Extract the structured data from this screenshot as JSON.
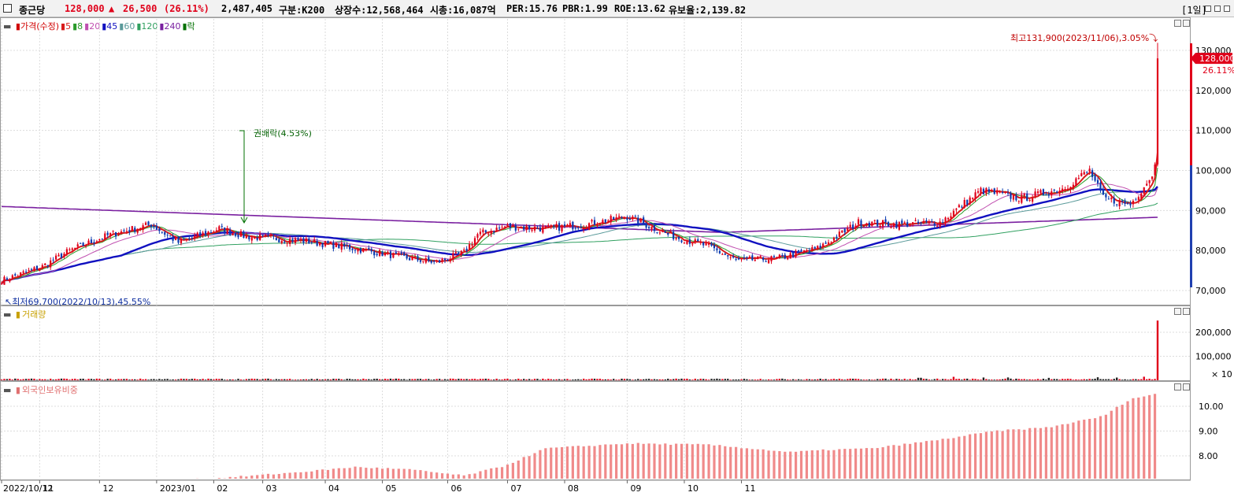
{
  "header": {
    "stock_name": "종근당",
    "price": "128,000",
    "change_arrow": "▲",
    "change": "26,500",
    "change_pct": "(26.11%)",
    "volume": "2,487,405",
    "category": "구분:K200",
    "listed_shares": "상장수:12,568,464",
    "market_cap": "시총:16,087억",
    "per": "PER:15.76",
    "pbr": "PBR:1.99",
    "roe": "ROE:13.62",
    "float": "유보율:2,139.82",
    "period": "[1일]"
  },
  "colors": {
    "up": "#e0001a",
    "down": "#0a3ab0",
    "ma5": "#d81b1b",
    "ma8": "#2a9a2a",
    "ma20": "#c050b0",
    "ma45": "#1010c0",
    "ma60": "#5a9a9a",
    "ma120": "#30a060",
    "ma240": "#7a20a0",
    "volume_bar": "#e06060",
    "foreign_bar": "#f08a8a"
  },
  "price_pane": {
    "legend": [
      {
        "label": "가격(수정)",
        "color": "#d00000"
      },
      {
        "label": "5",
        "color": "#d81b1b"
      },
      {
        "label": "8",
        "color": "#2a9a2a"
      },
      {
        "label": "20",
        "color": "#c050b0"
      },
      {
        "label": "45",
        "color": "#1010c0"
      },
      {
        "label": "60",
        "color": "#5a9a9a"
      },
      {
        "label": "120",
        "color": "#30a060"
      },
      {
        "label": "240",
        "color": "#7a20a0"
      },
      {
        "label": "락",
        "color": "#007000"
      }
    ],
    "high_label": "최고131,900(2023/11/06),3.05%",
    "low_label": "최저69,700(2022/10/13),45.55%",
    "event_label": "권배락(4.53%)",
    "current_price_tag": "128,000",
    "current_pct_tag": "26.11%",
    "y_ticks": [
      "130,000",
      "120,000",
      "110,000",
      "100,000",
      "90,000",
      "80,000",
      "70,000"
    ]
  },
  "volume_pane": {
    "legend_label": "거래량",
    "y_ticks": [
      "200,000",
      "100,000"
    ],
    "multiplier": "× 10"
  },
  "foreign_pane": {
    "legend_label": "외국인보유비중",
    "y_ticks": [
      "10.00",
      "9.00",
      "8.00"
    ]
  },
  "x_axis": [
    "2022/10/12",
    "11",
    "12",
    "2023/01",
    "02",
    "03",
    "04",
    "05",
    "06",
    "07",
    "08",
    "09",
    "10",
    "11"
  ],
  "chart_data": [
    {
      "type": "candlestick",
      "title": "가격(수정)",
      "x_labels": [
        "2022/10/12",
        "11",
        "12",
        "2023/01",
        "02",
        "03",
        "04",
        "05",
        "06",
        "07",
        "08",
        "09",
        "10",
        "11"
      ],
      "ylim": [
        68000,
        133000
      ],
      "approx_close_path": [
        [
          0,
          72500
        ],
        [
          15,
          76000
        ],
        [
          25,
          80000
        ],
        [
          40,
          84000
        ],
        [
          55,
          86500
        ],
        [
          65,
          82000
        ],
        [
          80,
          85500
        ],
        [
          90,
          83500
        ],
        [
          110,
          82500
        ],
        [
          130,
          80500
        ],
        [
          150,
          78000
        ],
        [
          160,
          77000
        ],
        [
          170,
          79500
        ],
        [
          175,
          84000
        ],
        [
          185,
          86000
        ],
        [
          200,
          85500
        ],
        [
          215,
          86500
        ],
        [
          230,
          88500
        ],
        [
          245,
          84000
        ],
        [
          260,
          81000
        ],
        [
          270,
          77500
        ],
        [
          285,
          78000
        ],
        [
          300,
          80500
        ],
        [
          315,
          87000
        ],
        [
          330,
          86500
        ],
        [
          345,
          87000
        ],
        [
          360,
          95000
        ],
        [
          375,
          93000
        ],
        [
          390,
          95500
        ],
        [
          400,
          100000
        ],
        [
          405,
          93000
        ],
        [
          415,
          91500
        ],
        [
          421,
          97000
        ],
        [
          423,
          99500
        ],
        [
          425,
          128000
        ]
      ],
      "high": 131900,
      "low": 69700,
      "last_close": 128000
    },
    {
      "type": "bar",
      "title": "거래량",
      "unit_multiplier": 10,
      "ylim": [
        0,
        270000
      ],
      "notable": [
        {
          "index": 425,
          "value": 248740
        }
      ]
    },
    {
      "type": "bar",
      "title": "외국인보유비중",
      "ylim": [
        7.0,
        11.2
      ],
      "approx_path": [
        [
          0,
          6.88
        ],
        [
          40,
          6.95
        ],
        [
          80,
          7.1
        ],
        [
          110,
          7.35
        ],
        [
          130,
          7.55
        ],
        [
          150,
          7.45
        ],
        [
          170,
          7.2
        ],
        [
          185,
          7.6
        ],
        [
          200,
          8.3
        ],
        [
          230,
          8.5
        ],
        [
          260,
          8.45
        ],
        [
          290,
          8.15
        ],
        [
          305,
          8.25
        ],
        [
          320,
          8.3
        ],
        [
          345,
          8.65
        ],
        [
          365,
          9.0
        ],
        [
          385,
          9.15
        ],
        [
          405,
          9.6
        ],
        [
          415,
          10.3
        ],
        [
          425,
          10.5
        ]
      ]
    }
  ]
}
